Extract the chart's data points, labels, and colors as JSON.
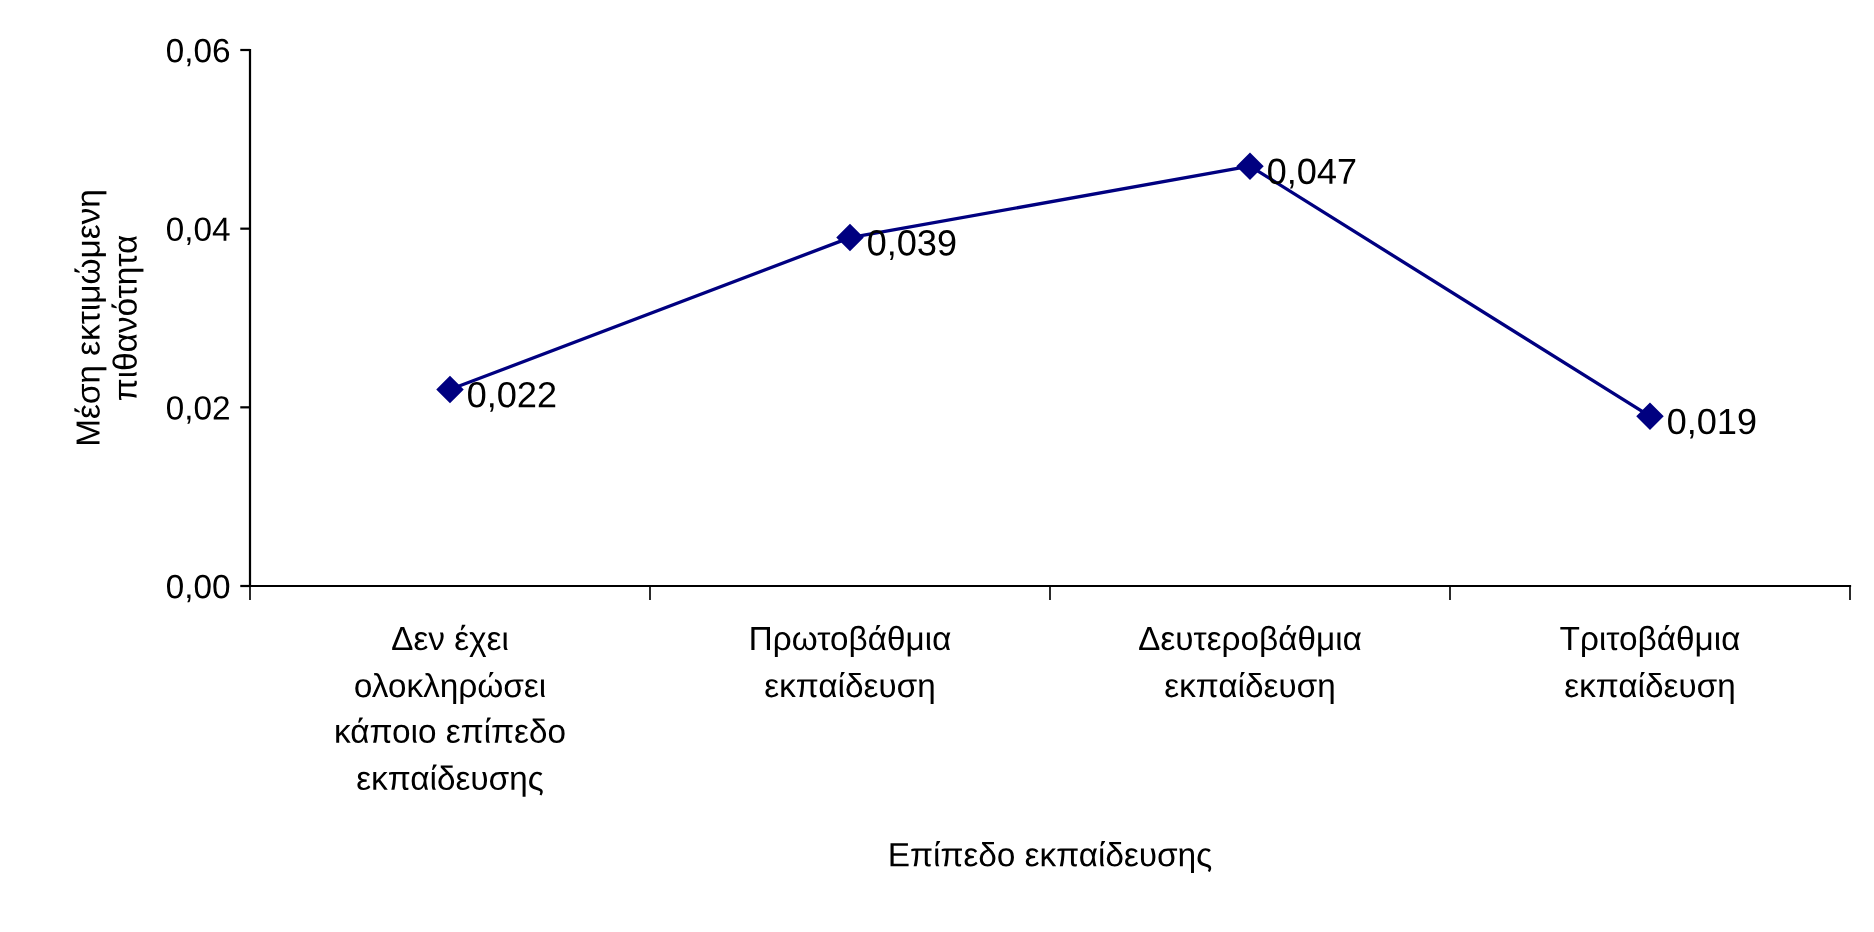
{
  "chart_data": {
    "type": "line",
    "xlabel": "Επίπεδο εκπαίδευσης",
    "ylabel": "Μέση εκτιμώμενη\nπιθανότητα",
    "categories": [
      "Δεν έχει\nολοκληρώσει\nκάποιο επίπεδο\nεκπαίδευσης",
      "Πρωτοβάθμια\nεκπαίδευση",
      "Δευτεροβάθμια\nεκπαίδευση",
      "Τριτοβάθμια\nεκπαίδευση"
    ],
    "series": [
      {
        "color": "#000080",
        "values": [
          0.022,
          0.039,
          0.047,
          0.019
        ],
        "value_labels": [
          "0,022",
          "0,039",
          "0,047",
          "0,019"
        ]
      }
    ],
    "ylim": [
      0,
      0.06
    ],
    "yticks": [
      {
        "value": 0,
        "label": "0,00"
      },
      {
        "value": 0.02,
        "label": "0,02"
      },
      {
        "value": 0.04,
        "label": "0,04"
      },
      {
        "value": 0.06,
        "label": "0,06"
      }
    ],
    "marker": "diamond",
    "line_style": "solid",
    "grid": false,
    "legend": false
  }
}
